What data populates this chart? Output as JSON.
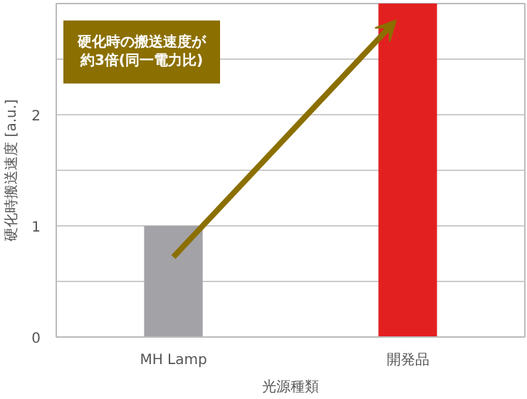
{
  "chart_data": {
    "type": "bar",
    "xlabel": "光源種類",
    "ylabel": "硬化時搬送速度 [a.u.]",
    "categories": [
      "MH Lamp",
      "開発品"
    ],
    "values": [
      1,
      3
    ],
    "colors": [
      "#a3a2a7",
      "#e32020"
    ],
    "ylim": [
      0,
      3
    ],
    "yticks": [
      0,
      {
        "value": 0.5,
        "label": null
      },
      1,
      {
        "value": 1.5,
        "label": null
      },
      2,
      {
        "value": 2.5,
        "label": null
      }
    ],
    "grid": "y",
    "annotations": [
      "硬化時の搬送速度が約3倍(同一電力比)"
    ]
  }
}
